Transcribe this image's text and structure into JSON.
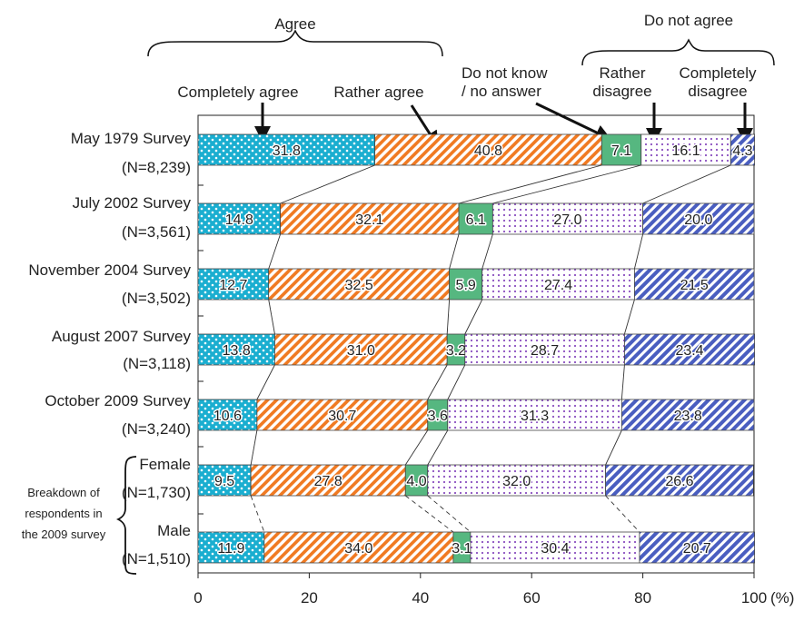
{
  "chart_data": {
    "type": "bar",
    "stacked": true,
    "orientation": "horizontal",
    "x_unit": "(%)",
    "xlim": [
      0,
      100
    ],
    "x_ticks": [
      "0",
      "20",
      "40",
      "60",
      "80",
      "100"
    ],
    "groups": [
      {
        "label": "Agree",
        "series": [
          "Completely agree",
          "Rather agree"
        ]
      },
      {
        "label": "Do not agree",
        "series": [
          "Rather disagree",
          "Completely disagree"
        ]
      }
    ],
    "series": [
      {
        "name": "Completely agree",
        "legend": [
          "Completely agree"
        ],
        "color": "#1aaed0",
        "values": [
          31.8,
          14.8,
          12.7,
          13.8,
          10.6,
          9.5,
          11.9
        ],
        "labels": [
          "31.8",
          "14.8",
          "12.7",
          "13.8",
          "10.6",
          "9.5",
          "11.9"
        ]
      },
      {
        "name": "Rather agree",
        "legend": [
          "Rather agree"
        ],
        "color": "#f07a22",
        "values": [
          40.8,
          32.1,
          32.5,
          31.0,
          30.7,
          27.8,
          34.0
        ],
        "labels": [
          "40.8",
          "32.1",
          "32.5",
          "31.0",
          "30.7",
          "27.8",
          "34.0"
        ]
      },
      {
        "name": "Do not know / no answer",
        "legend": [
          "Do not know",
          "/ no answer"
        ],
        "color": "#56b780",
        "values": [
          7.1,
          6.1,
          5.9,
          3.2,
          3.6,
          4.0,
          3.1
        ],
        "labels": [
          "7.1",
          "6.1",
          "5.9",
          "3.2",
          "3.6",
          "4.0",
          "3.1"
        ]
      },
      {
        "name": "Rather disagree",
        "legend": [
          "Rather",
          "disagree"
        ],
        "color": "#8a4fc0",
        "values": [
          16.1,
          27.0,
          27.4,
          28.7,
          31.3,
          32.0,
          30.4
        ],
        "labels": [
          "16.1",
          "27.0",
          "27.4",
          "28.7",
          "31.3",
          "32.0",
          "30.4"
        ]
      },
      {
        "name": "Completely disagree",
        "legend": [
          "Completely",
          "disagree"
        ],
        "color": "#4a5ec0",
        "values": [
          4.3,
          20.0,
          21.5,
          23.4,
          23.8,
          26.6,
          20.7
        ],
        "labels": [
          "4.3",
          "20.0",
          "21.5",
          "23.4",
          "23.8",
          "26.6",
          "20.7"
        ]
      }
    ],
    "rows": [
      {
        "line1": "May 1979 Survey",
        "line2": "(N=8,239)"
      },
      {
        "line1": "July 2002 Survey",
        "line2": "(N=3,561)"
      },
      {
        "line1": "November 2004 Survey",
        "line2": "(N=3,502)"
      },
      {
        "line1": "August 2007 Survey",
        "line2": "(N=3,118)"
      },
      {
        "line1": "October 2009 Survey",
        "line2": "(N=3,240)"
      },
      {
        "line1": "Female",
        "line2": "(N=1,730)"
      },
      {
        "line1": "Male",
        "line2": "(N=1,510)"
      }
    ],
    "breakdown_label": [
      "Breakdown of",
      "respondents in",
      "the 2009 survey"
    ]
  }
}
